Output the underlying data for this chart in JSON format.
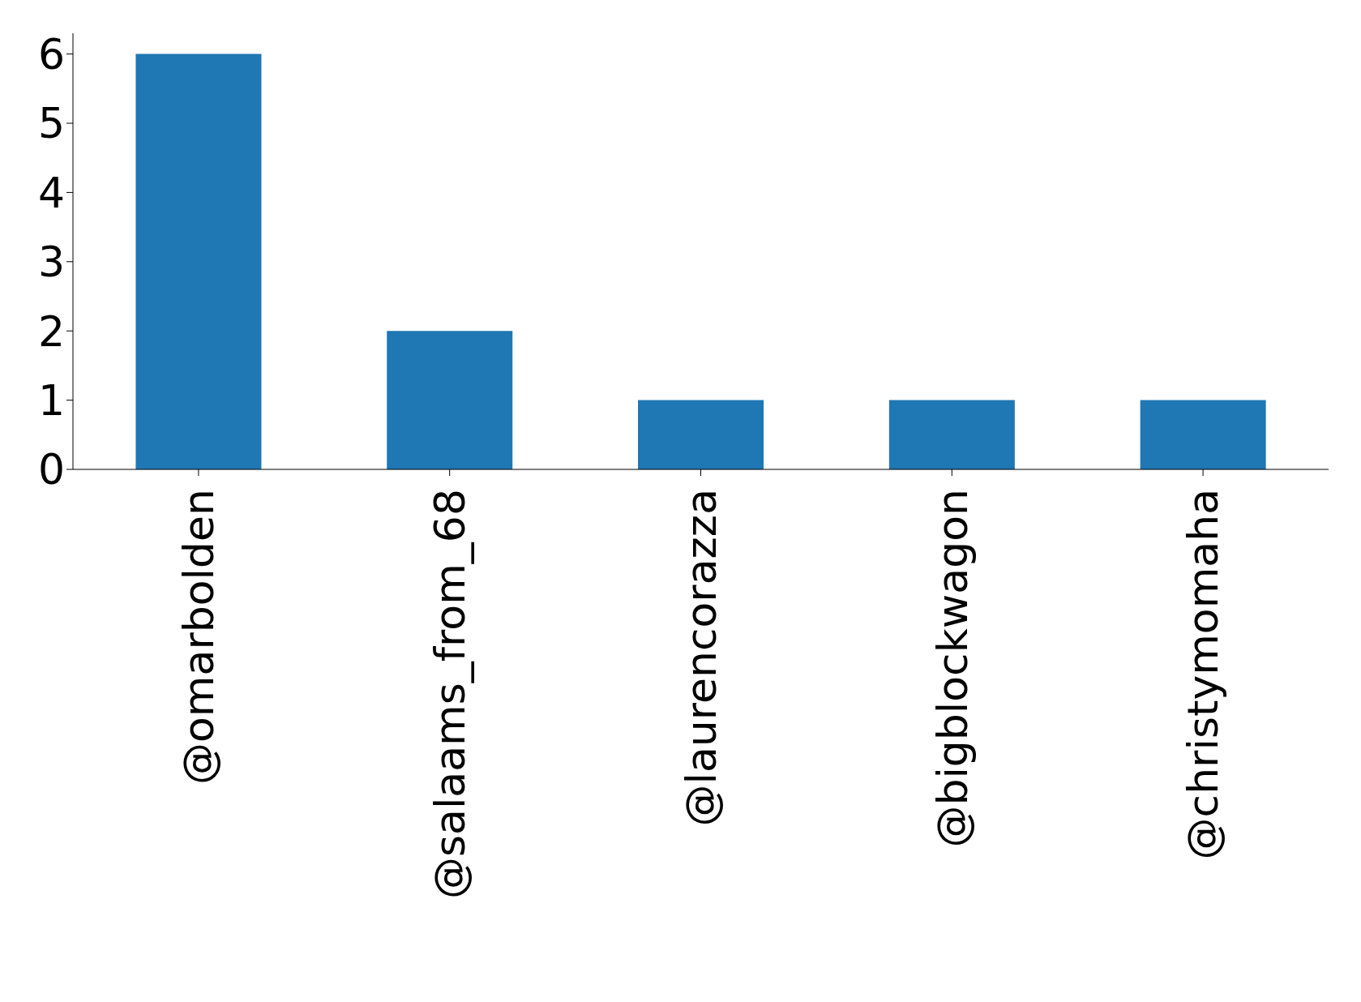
{
  "chart_data": {
    "type": "bar",
    "categories": [
      "@omarbolden",
      "@salaams_from_68",
      "@laurencorazza",
      "@bigblockwagon",
      "@christymomaha"
    ],
    "values": [
      6,
      2,
      1,
      1,
      1
    ],
    "color": "#1f77b4",
    "ylim": [
      0,
      6.3
    ],
    "yticks": [
      0,
      1,
      2,
      3,
      4,
      5,
      6
    ],
    "grid": false
  }
}
